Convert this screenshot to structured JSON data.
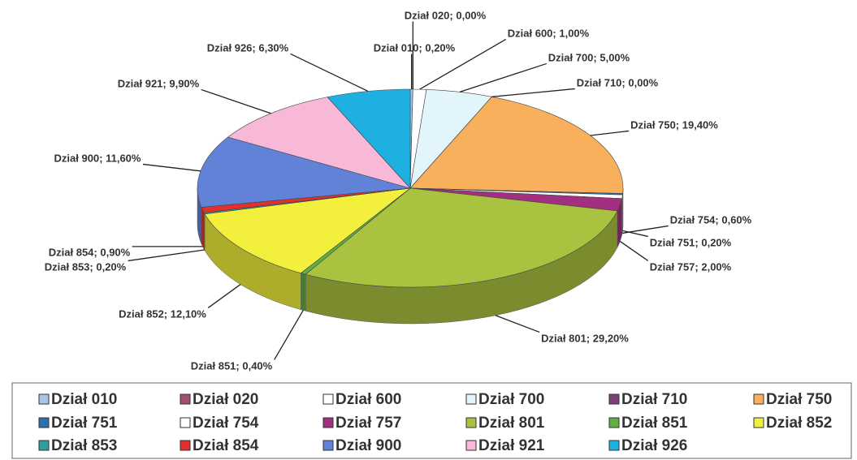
{
  "chart_data": {
    "type": "pie3d",
    "categories": [
      "Dział 010",
      "Dział 020",
      "Dział 600",
      "Dział 700",
      "Dział 710",
      "Dział 750",
      "Dział 751",
      "Dział 754",
      "Dział 757",
      "Dział 801",
      "Dział 851",
      "Dział 852",
      "Dział 853",
      "Dział 854",
      "Dział 900",
      "Dział 921",
      "Dział 926"
    ],
    "values": [
      0.2,
      0,
      1,
      5,
      0,
      19.4,
      0.2,
      0.6,
      2,
      29.2,
      0.4,
      12.1,
      0.2,
      0.9,
      11.6,
      9.9,
      6.3
    ],
    "value_labels": [
      "Dział 010; 0,20%",
      "Dział 020; 0,00%",
      "Dział 600; 1,00%",
      "Dział 700; 5,00%",
      "Dział 710; 0,00%",
      "Dział 750; 19,40%",
      "Dział 751; 0,20%",
      "Dział 754; 0,60%",
      "Dział 757; 2,00%",
      "Dział 801; 29,20%",
      "Dział 851; 0,40%",
      "Dział 852; 12,10%",
      "Dział 853; 0,20%",
      "Dział 854; 0,90%",
      "Dział 900; 11,60%",
      "Dział 921; 9,90%",
      "Dział 926; 6,30%"
    ],
    "colors": [
      "#a9c6e6",
      "#a24f73",
      "#ffffff",
      "#e2f5fb",
      "#7b3f7b",
      "#f9b05c",
      "#2f6fad",
      "#ffffff",
      "#a3307f",
      "#a9c23f",
      "#5fb043",
      "#f2f03c",
      "#2e9e9e",
      "#e3302f",
      "#6282d8",
      "#f8b9d8",
      "#1fb0e2"
    ]
  }
}
